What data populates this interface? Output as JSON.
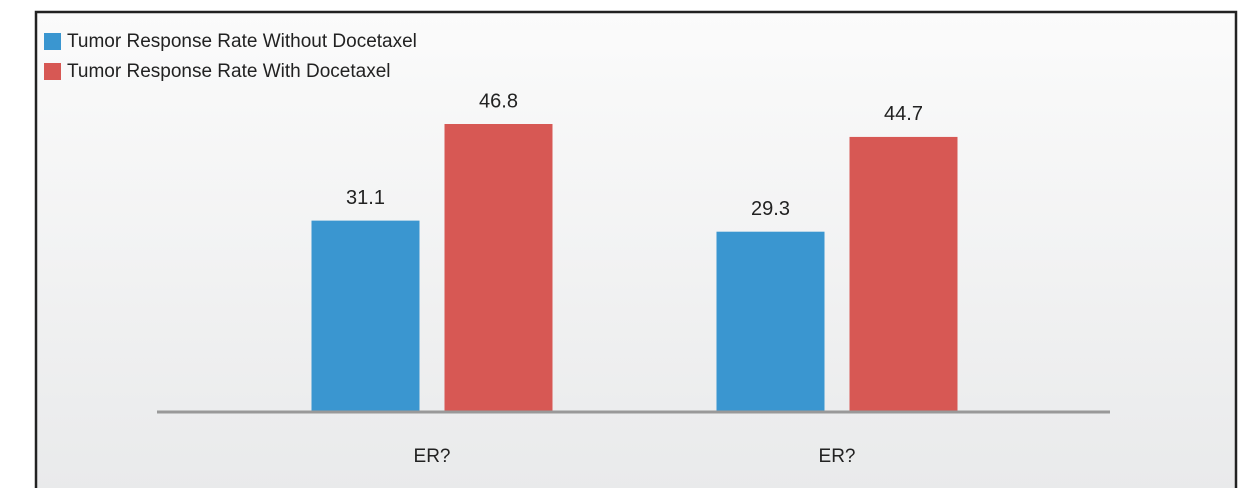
{
  "chart_data": {
    "type": "bar",
    "categories": [
      "ER?",
      "ER?"
    ],
    "series": [
      {
        "name": "Tumor Response Rate Without Docetaxel",
        "color": "#3a96d0",
        "values": [
          31.1,
          29.3
        ]
      },
      {
        "name": "Tumor Response Rate With Docetaxel",
        "color": "#d75854",
        "values": [
          46.8,
          44.7
        ]
      }
    ],
    "legend": "top-left"
  }
}
